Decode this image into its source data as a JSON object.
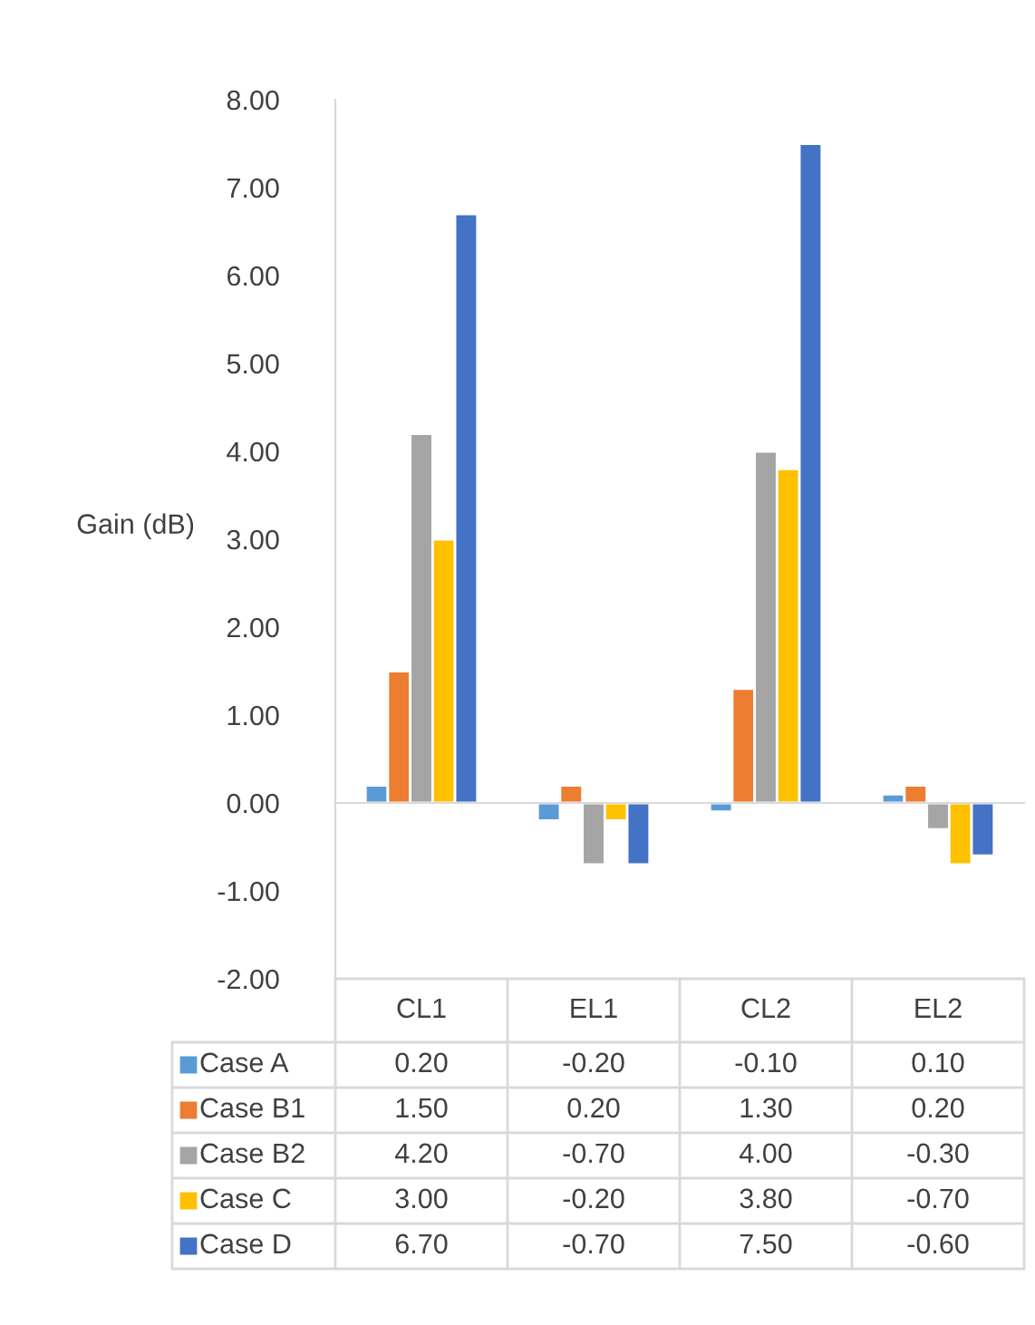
{
  "chart_data": {
    "type": "bar",
    "ylabel": "Gain (dB)",
    "categories": [
      "CL1",
      "EL1",
      "CL2",
      "EL2"
    ],
    "ylim": [
      -2,
      8
    ],
    "yticks": [
      {
        "value": -2,
        "label": "-2.00"
      },
      {
        "value": -1,
        "label": "-1.00"
      },
      {
        "value": 0,
        "label": "0.00"
      },
      {
        "value": 1,
        "label": "1.00"
      },
      {
        "value": 2,
        "label": "2.00"
      },
      {
        "value": 3,
        "label": "3.00"
      },
      {
        "value": 4,
        "label": "4.00"
      },
      {
        "value": 5,
        "label": "5.00"
      },
      {
        "value": 6,
        "label": "6.00"
      },
      {
        "value": 7,
        "label": "7.00"
      },
      {
        "value": 8,
        "label": "8.00"
      }
    ],
    "series": [
      {
        "name": "Case A",
        "color": "#5b9bd5",
        "values": [
          0.2,
          -0.2,
          -0.1,
          0.1
        ],
        "value_labels": [
          "0.20",
          "-0.20",
          "-0.10",
          "0.10"
        ]
      },
      {
        "name": "Case B1",
        "color": "#ed7d31",
        "values": [
          1.5,
          0.2,
          1.3,
          0.2
        ],
        "value_labels": [
          "1.50",
          "0.20",
          "1.30",
          "0.20"
        ]
      },
      {
        "name": "Case B2",
        "color": "#a5a5a5",
        "values": [
          4.2,
          -0.7,
          4.0,
          -0.3
        ],
        "value_labels": [
          "4.20",
          "-0.70",
          "4.00",
          "-0.30"
        ]
      },
      {
        "name": "Case C",
        "color": "#ffc000",
        "values": [
          3.0,
          -0.2,
          3.8,
          -0.7
        ],
        "value_labels": [
          "3.00",
          "-0.20",
          "3.80",
          "-0.70"
        ]
      },
      {
        "name": "Case D",
        "color": "#4472c4",
        "values": [
          6.7,
          -0.7,
          7.5,
          -0.6
        ],
        "value_labels": [
          "6.70",
          "-0.70",
          "7.50",
          "-0.60"
        ]
      }
    ],
    "legend": "bottom"
  }
}
